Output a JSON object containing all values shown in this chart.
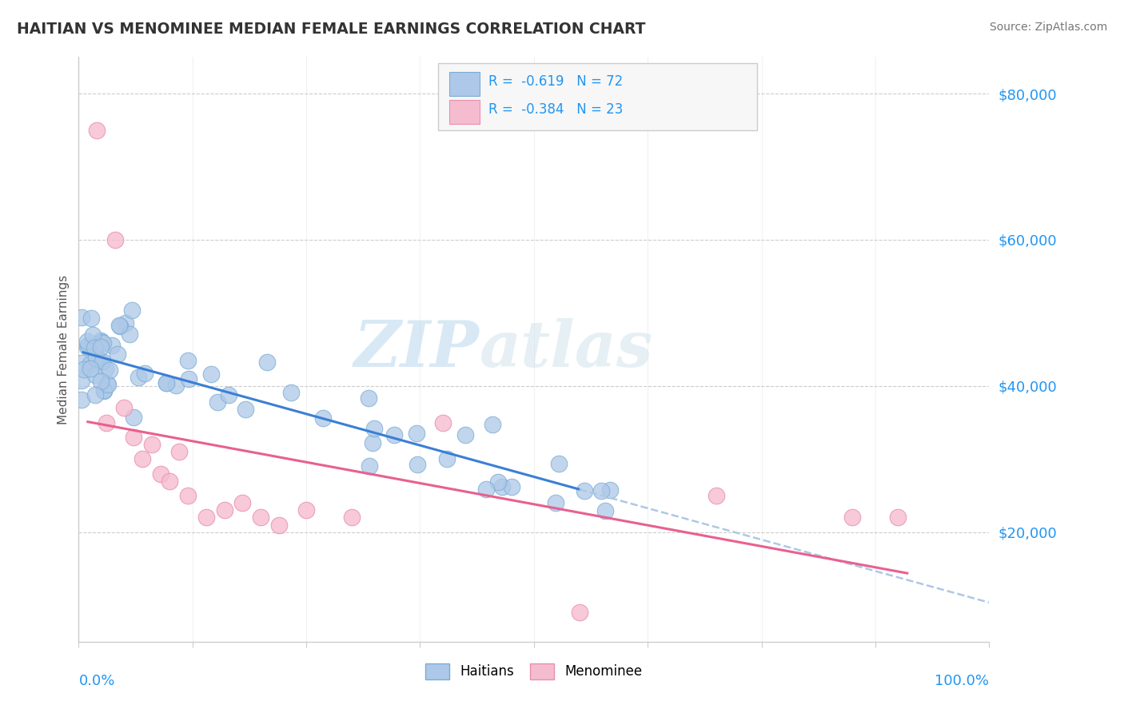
{
  "title": "HAITIAN VS MENOMINEE MEDIAN FEMALE EARNINGS CORRELATION CHART",
  "source": "Source: ZipAtlas.com",
  "ylabel": "Median Female Earnings",
  "y_ticks": [
    20000,
    40000,
    60000,
    80000
  ],
  "y_tick_labels": [
    "$20,000",
    "$40,000",
    "$60,000",
    "$80,000"
  ],
  "x_range": [
    0,
    100
  ],
  "y_range": [
    5000,
    85000
  ],
  "watermark": "ZIPatlas",
  "blue_scatter_color": "#adc8e8",
  "blue_scatter_edge": "#7aadd4",
  "pink_scatter_color": "#f5bcd0",
  "pink_scatter_edge": "#e890ad",
  "blue_line_color": "#3a7fd5",
  "pink_line_color": "#e86090",
  "dashed_line_color": "#aec8e5",
  "haitians_label": "Haitians",
  "menominee_label": "Menominee",
  "legend_text_color": "#2196F3",
  "ytick_color": "#2196F3",
  "xtick_color": "#2196F3",
  "grid_color": "#cccccc",
  "title_color": "#333333",
  "source_color": "#777777",
  "watermark_color": "#cce4f5"
}
